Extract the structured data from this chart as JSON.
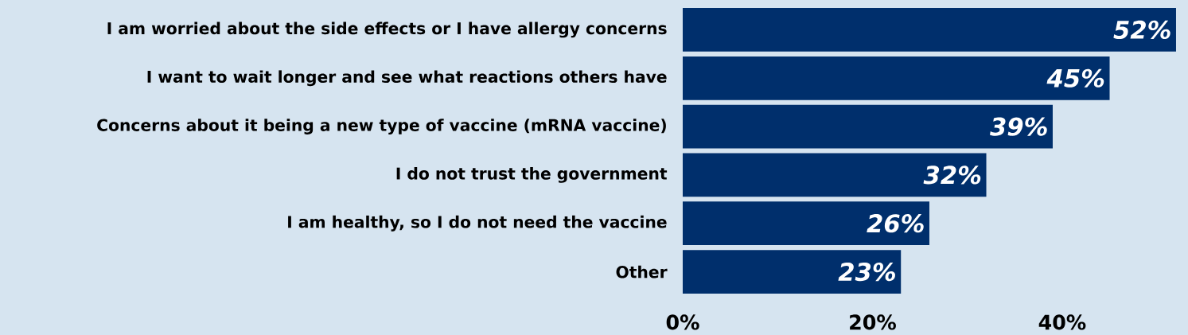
{
  "chart_data": {
    "type": "bar",
    "orientation": "horizontal",
    "categories": [
      "I am worried about the side effects or I have allergy concerns",
      "I want to wait longer and see what reactions others have",
      "Concerns about it being a new type of vaccine (mRNA vaccine)",
      "I do not trust the government",
      "I am healthy, so I do not need the vaccine",
      "Other"
    ],
    "values": [
      52,
      45,
      39,
      32,
      26,
      23
    ],
    "value_labels": [
      "52%",
      "45%",
      "39%",
      "32%",
      "26%",
      "23%"
    ],
    "color": "#002f6c",
    "xlim": [
      0,
      52
    ],
    "xticks": [
      {
        "value": 0,
        "label": "0%"
      },
      {
        "value": 20,
        "label": "20%"
      },
      {
        "value": 40,
        "label": "40%"
      }
    ],
    "grid": false
  }
}
